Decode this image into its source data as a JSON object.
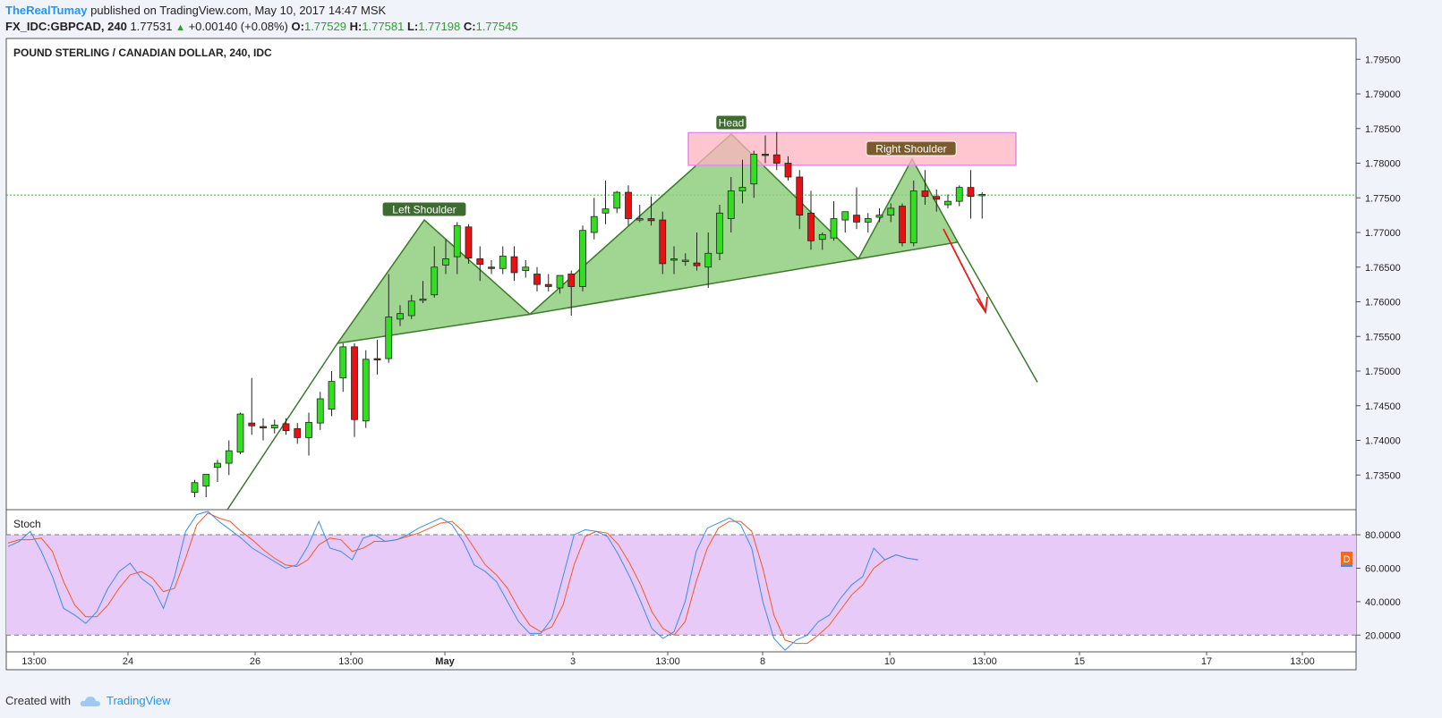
{
  "header": {
    "author": "TheRealTumay",
    "published": "published on TradingView.com, May 10, 2017 14:47 MSK",
    "symbol": "FX_IDC:GBPCAD, 240",
    "last": "1.77531",
    "change_arrow": "▲",
    "change": "+0.00140 (+0.08%)",
    "o_label": "O:",
    "o": "1.77529",
    "h_label": "H:",
    "h": "1.77581",
    "l_label": "L:",
    "l": "1.77198",
    "c_label": "C:",
    "c": "1.77545"
  },
  "footer": {
    "created_with": "Created with",
    "brand": "TradingView"
  },
  "colors": {
    "bull": "#33dd22",
    "bear": "#e81010",
    "pattern_fill": "#8fcf7f",
    "pattern_line": "#3b7a2a",
    "zone_fill": "#ffb3bf",
    "zone_border": "#e58ae8",
    "stoch_bg": "#e8caf8",
    "k_line": "#3a8fe8",
    "d_line": "#f05a2a",
    "arrow": "#e51c1c"
  },
  "chart_data": {
    "type": "candlestick",
    "title": "POUND STERLING / CANADIAN DOLLAR, 240, IDC",
    "ylim": [
      1.73,
      1.798
    ],
    "y_ticks": [
      "1.79500",
      "1.79000",
      "1.78500",
      "1.78000",
      "1.77500",
      "1.77000",
      "1.76500",
      "1.76000",
      "1.75500",
      "1.75000",
      "1.74500",
      "1.74000",
      "1.73500"
    ],
    "x_ticks": [
      "13:00",
      "24",
      "26",
      "13:00",
      "May",
      "3",
      "13:00",
      "8",
      "10",
      "13:00",
      "15",
      "17",
      "13:00"
    ],
    "current_price_line": 1.7754,
    "candles": [
      {
        "o": 1.7325,
        "h": 1.7343,
        "l": 1.7318,
        "c": 1.7339
      },
      {
        "o": 1.7334,
        "h": 1.7345,
        "l": 1.7318,
        "c": 1.7351
      },
      {
        "o": 1.7361,
        "h": 1.7372,
        "l": 1.734,
        "c": 1.7367
      },
      {
        "o": 1.7367,
        "h": 1.74,
        "l": 1.735,
        "c": 1.7385
      },
      {
        "o": 1.7383,
        "h": 1.744,
        "l": 1.738,
        "c": 1.7438
      },
      {
        "o": 1.7425,
        "h": 1.749,
        "l": 1.7408,
        "c": 1.7421
      },
      {
        "o": 1.742,
        "h": 1.7432,
        "l": 1.74,
        "c": 1.7418
      },
      {
        "o": 1.7418,
        "h": 1.743,
        "l": 1.741,
        "c": 1.7422
      },
      {
        "o": 1.7424,
        "h": 1.7432,
        "l": 1.7408,
        "c": 1.7414
      },
      {
        "o": 1.7417,
        "h": 1.7425,
        "l": 1.7395,
        "c": 1.7404
      },
      {
        "o": 1.7404,
        "h": 1.744,
        "l": 1.7378,
        "c": 1.7426
      },
      {
        "o": 1.7425,
        "h": 1.747,
        "l": 1.7415,
        "c": 1.746
      },
      {
        "o": 1.7445,
        "h": 1.75,
        "l": 1.7435,
        "c": 1.7485
      },
      {
        "o": 1.749,
        "h": 1.754,
        "l": 1.747,
        "c": 1.7535
      },
      {
        "o": 1.7535,
        "h": 1.754,
        "l": 1.7405,
        "c": 1.743
      },
      {
        "o": 1.7428,
        "h": 1.753,
        "l": 1.7418,
        "c": 1.7517
      },
      {
        "o": 1.7518,
        "h": 1.7545,
        "l": 1.7495,
        "c": 1.7516
      },
      {
        "o": 1.7518,
        "h": 1.764,
        "l": 1.7512,
        "c": 1.7578
      },
      {
        "o": 1.7575,
        "h": 1.7595,
        "l": 1.7565,
        "c": 1.7583
      },
      {
        "o": 1.758,
        "h": 1.761,
        "l": 1.7575,
        "c": 1.7601
      },
      {
        "o": 1.7602,
        "h": 1.763,
        "l": 1.7598,
        "c": 1.7604
      },
      {
        "o": 1.761,
        "h": 1.768,
        "l": 1.7606,
        "c": 1.765
      },
      {
        "o": 1.7653,
        "h": 1.769,
        "l": 1.764,
        "c": 1.7662
      },
      {
        "o": 1.7665,
        "h": 1.7715,
        "l": 1.764,
        "c": 1.771
      },
      {
        "o": 1.7708,
        "h": 1.7712,
        "l": 1.7655,
        "c": 1.7663
      },
      {
        "o": 1.7662,
        "h": 1.768,
        "l": 1.763,
        "c": 1.7654
      },
      {
        "o": 1.765,
        "h": 1.766,
        "l": 1.764,
        "c": 1.7648
      },
      {
        "o": 1.7648,
        "h": 1.768,
        "l": 1.764,
        "c": 1.7666
      },
      {
        "o": 1.7665,
        "h": 1.768,
        "l": 1.763,
        "c": 1.7642
      },
      {
        "o": 1.7645,
        "h": 1.766,
        "l": 1.7635,
        "c": 1.765
      },
      {
        "o": 1.764,
        "h": 1.765,
        "l": 1.7615,
        "c": 1.7625
      },
      {
        "o": 1.7625,
        "h": 1.764,
        "l": 1.7615,
        "c": 1.7622
      },
      {
        "o": 1.762,
        "h": 1.7638,
        "l": 1.7612,
        "c": 1.7638
      },
      {
        "o": 1.764,
        "h": 1.7645,
        "l": 1.758,
        "c": 1.7622
      },
      {
        "o": 1.7622,
        "h": 1.771,
        "l": 1.7615,
        "c": 1.7703
      },
      {
        "o": 1.77,
        "h": 1.775,
        "l": 1.769,
        "c": 1.7723
      },
      {
        "o": 1.7728,
        "h": 1.7775,
        "l": 1.7712,
        "c": 1.7734
      },
      {
        "o": 1.7735,
        "h": 1.776,
        "l": 1.7728,
        "c": 1.7758
      },
      {
        "o": 1.7758,
        "h": 1.7768,
        "l": 1.771,
        "c": 1.772
      },
      {
        "o": 1.7718,
        "h": 1.774,
        "l": 1.7715,
        "c": 1.772
      },
      {
        "o": 1.772,
        "h": 1.7752,
        "l": 1.771,
        "c": 1.7717
      },
      {
        "o": 1.7718,
        "h": 1.773,
        "l": 1.764,
        "c": 1.7655
      },
      {
        "o": 1.766,
        "h": 1.768,
        "l": 1.764,
        "c": 1.7662
      },
      {
        "o": 1.766,
        "h": 1.767,
        "l": 1.7652,
        "c": 1.766
      },
      {
        "o": 1.7656,
        "h": 1.77,
        "l": 1.7645,
        "c": 1.7652
      },
      {
        "o": 1.765,
        "h": 1.77,
        "l": 1.762,
        "c": 1.767
      },
      {
        "o": 1.767,
        "h": 1.774,
        "l": 1.766,
        "c": 1.7728
      },
      {
        "o": 1.772,
        "h": 1.778,
        "l": 1.77,
        "c": 1.776
      },
      {
        "o": 1.776,
        "h": 1.7805,
        "l": 1.7742,
        "c": 1.7765
      },
      {
        "o": 1.777,
        "h": 1.7818,
        "l": 1.775,
        "c": 1.7813
      },
      {
        "o": 1.7813,
        "h": 1.784,
        "l": 1.78,
        "c": 1.7812
      },
      {
        "o": 1.7812,
        "h": 1.7845,
        "l": 1.779,
        "c": 1.78
      },
      {
        "o": 1.78,
        "h": 1.781,
        "l": 1.7775,
        "c": 1.778
      },
      {
        "o": 1.778,
        "h": 1.779,
        "l": 1.7705,
        "c": 1.7725
      },
      {
        "o": 1.7728,
        "h": 1.776,
        "l": 1.7675,
        "c": 1.7688
      },
      {
        "o": 1.769,
        "h": 1.77,
        "l": 1.7675,
        "c": 1.7697
      },
      {
        "o": 1.7692,
        "h": 1.7745,
        "l": 1.7688,
        "c": 1.772
      },
      {
        "o": 1.7718,
        "h": 1.773,
        "l": 1.77,
        "c": 1.773
      },
      {
        "o": 1.7725,
        "h": 1.7765,
        "l": 1.7705,
        "c": 1.7715
      },
      {
        "o": 1.7715,
        "h": 1.7728,
        "l": 1.77,
        "c": 1.772
      },
      {
        "o": 1.7722,
        "h": 1.7735,
        "l": 1.7715,
        "c": 1.7725
      },
      {
        "o": 1.7725,
        "h": 1.7742,
        "l": 1.7715,
        "c": 1.7735
      },
      {
        "o": 1.7738,
        "h": 1.7742,
        "l": 1.768,
        "c": 1.7685
      },
      {
        "o": 1.7685,
        "h": 1.7775,
        "l": 1.768,
        "c": 1.776
      },
      {
        "o": 1.776,
        "h": 1.779,
        "l": 1.774,
        "c": 1.7752
      },
      {
        "o": 1.7752,
        "h": 1.7762,
        "l": 1.773,
        "c": 1.7748
      },
      {
        "o": 1.774,
        "h": 1.7755,
        "l": 1.7735,
        "c": 1.7745
      },
      {
        "o": 1.7745,
        "h": 1.7768,
        "l": 1.7738,
        "c": 1.7765
      },
      {
        "o": 1.7765,
        "h": 1.779,
        "l": 1.772,
        "c": 1.7752
      },
      {
        "o": 1.7753,
        "h": 1.7758,
        "l": 1.772,
        "c": 1.7755
      }
    ],
    "pattern_labels": {
      "left": "Left Shoulder",
      "head": "Head",
      "right": "Right Shoulder"
    },
    "stoch": {
      "title": "Stoch",
      "ylim": [
        10,
        95
      ],
      "levels": [
        80,
        20
      ],
      "tick_labels": [
        "80.0000",
        "60.0000",
        "40.0000",
        "20.0000"
      ],
      "current_marker": "D",
      "k": [
        73,
        76,
        82,
        70,
        55,
        36,
        32,
        27,
        34,
        48,
        58,
        63,
        54,
        49,
        36,
        55,
        82,
        92,
        94,
        88,
        83,
        78,
        72,
        68,
        64,
        60,
        62,
        73,
        88,
        72,
        70,
        65,
        78,
        80,
        76,
        77,
        80,
        84,
        87,
        90,
        86,
        76,
        62,
        58,
        52,
        40,
        28,
        21,
        21,
        30,
        55,
        80,
        83,
        82,
        79,
        68,
        55,
        40,
        24,
        18,
        22,
        40,
        70,
        84,
        87,
        90,
        86,
        72,
        40,
        18,
        11,
        17,
        20,
        28,
        32,
        42,
        50,
        55,
        72,
        65,
        68,
        66,
        65
      ],
      "d": [
        75,
        77,
        77,
        78,
        70,
        52,
        38,
        31,
        31,
        38,
        48,
        56,
        58,
        54,
        46,
        48,
        66,
        86,
        93,
        90,
        88,
        82,
        77,
        71,
        66,
        62,
        61,
        65,
        74,
        78,
        77,
        70,
        72,
        76,
        76,
        77,
        79,
        81,
        84,
        87,
        88,
        82,
        72,
        62,
        56,
        48,
        36,
        26,
        22,
        25,
        38,
        62,
        79,
        82,
        81,
        74,
        63,
        50,
        34,
        24,
        20,
        28,
        52,
        72,
        84,
        88,
        88,
        82,
        60,
        32,
        17,
        15,
        15,
        20,
        26,
        35,
        44,
        50,
        60,
        65,
        68,
        66,
        65
      ]
    }
  }
}
